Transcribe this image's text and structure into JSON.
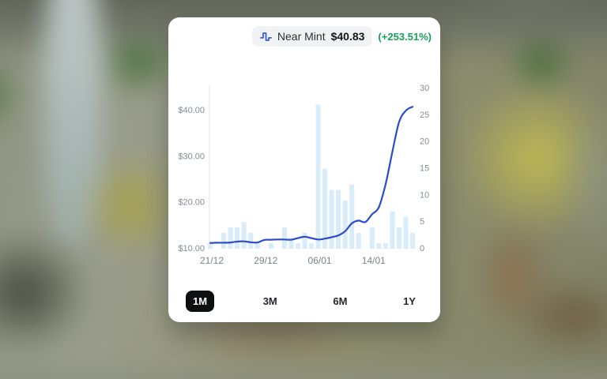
{
  "card": {
    "header": {
      "icon": "pulse-icon",
      "condition_label": "Near Mint",
      "price": "$40.83",
      "change": "(+253.51%)"
    },
    "ranges": [
      {
        "label": "1M",
        "active": true
      },
      {
        "label": "3M",
        "active": false
      },
      {
        "label": "6M",
        "active": false
      },
      {
        "label": "1Y",
        "active": false
      }
    ]
  },
  "chart_data": {
    "type": "line+bar",
    "title": "Near Mint price history (1 month)",
    "x_tick_labels": [
      "21/12",
      "29/12",
      "06/01",
      "14/01"
    ],
    "x_tick_indices": [
      0,
      8,
      16,
      24
    ],
    "price_axis": {
      "side": "left",
      "tick_values": [
        10,
        20,
        30,
        40
      ],
      "tick_labels": [
        "$10.00",
        "$20.00",
        "$30.00",
        "$40.00"
      ],
      "min": 10,
      "max": 45.5
    },
    "volume_axis": {
      "side": "right",
      "tick_values": [
        0,
        5,
        10,
        15,
        20,
        25,
        30
      ],
      "tick_labels": [
        "0",
        "5",
        "10",
        "15",
        "20",
        "25",
        "30"
      ],
      "min": 0,
      "max": 30.6
    },
    "grid": false,
    "legend": "none",
    "series": [
      {
        "name": "price",
        "type": "line",
        "color": "#2b4bcb",
        "values": [
          11.25,
          11.3,
          11.3,
          11.35,
          11.55,
          11.6,
          11.4,
          11.35,
          11.9,
          11.95,
          12.0,
          12.0,
          11.95,
          12.3,
          12.6,
          12.3,
          12.0,
          12.2,
          12.5,
          12.9,
          13.8,
          15.5,
          16.1,
          15.8,
          17.5,
          19.0,
          24.0,
          31.0,
          37.5,
          40.0,
          40.83
        ]
      },
      {
        "name": "volume",
        "type": "bar",
        "color": "#d9ecf9",
        "values": [
          1,
          0,
          3,
          4,
          4,
          5,
          3,
          1,
          0,
          1,
          0,
          4,
          2,
          1,
          3,
          1,
          27,
          15,
          11,
          11,
          9,
          12,
          3,
          0,
          4,
          1,
          1,
          7,
          4,
          6,
          3
        ]
      }
    ]
  },
  "colors": {
    "accent_blue": "#3b5bdb",
    "positive_green": "#18a05a",
    "active_button_bg": "#0e0f10",
    "axis_text": "#878d94",
    "axis_line": "#e1e3e6",
    "x_label_text": "#7c838a"
  }
}
